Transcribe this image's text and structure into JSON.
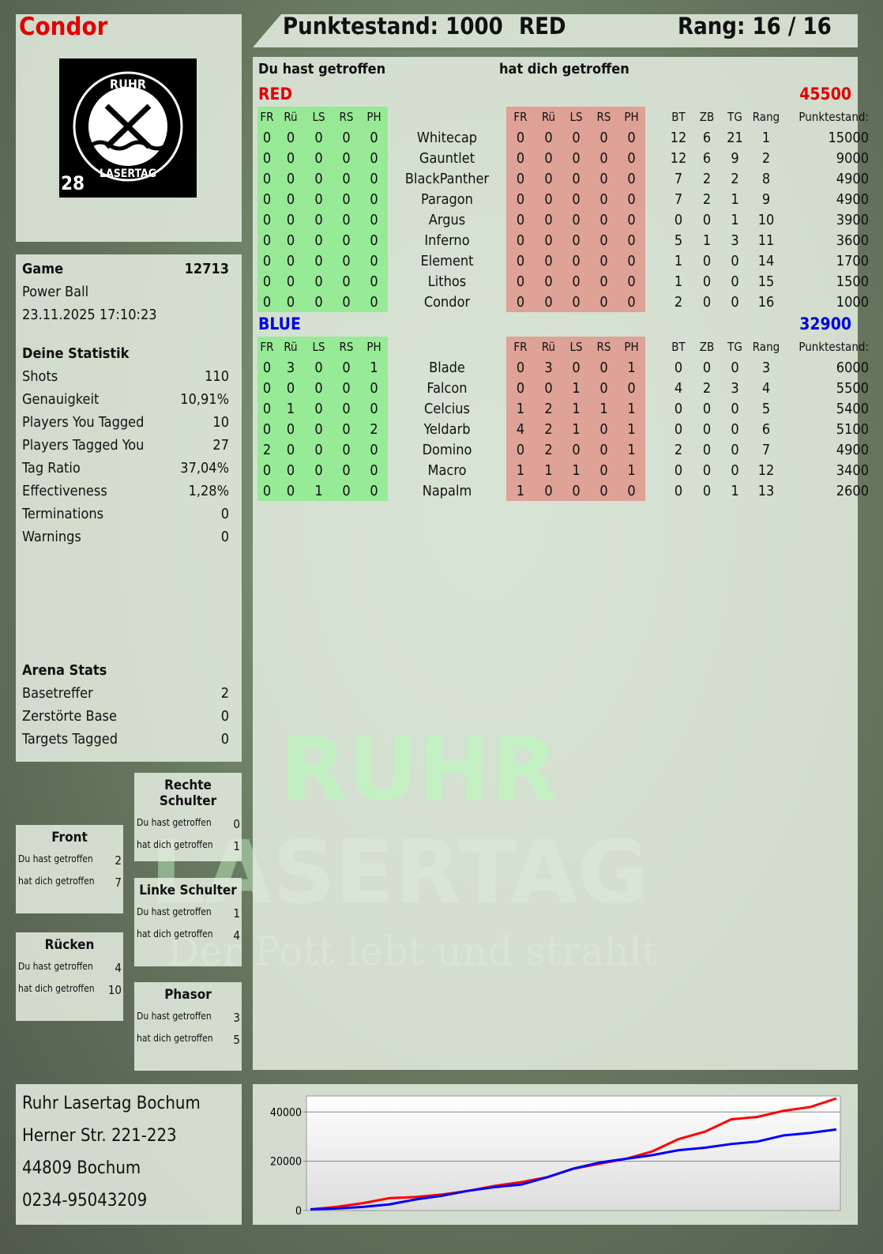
{
  "player": {
    "name": "Condor",
    "logo_text": "RUHR LASERTAG",
    "logo_number": "28"
  },
  "header": {
    "score": "Punktestand: 1000",
    "team": "RED",
    "rank": "Rang: 16 / 16"
  },
  "game": {
    "label": "Game",
    "id": "12713",
    "mode": "Power Ball",
    "datetime": "23.11.2025 17:10:23"
  },
  "stats": {
    "title": "Deine Statistik",
    "items": [
      [
        "Shots",
        "110"
      ],
      [
        "Genauigkeit",
        "10,91%"
      ],
      [
        "Players You Tagged",
        "10"
      ],
      [
        "Players Tagged You",
        "27"
      ],
      [
        "Tag Ratio",
        "37,04%"
      ],
      [
        "Effectiveness",
        "1,28%"
      ],
      [
        "Terminations",
        "0"
      ],
      [
        "Warnings",
        "0"
      ]
    ]
  },
  "arena": {
    "title": "Arena Stats",
    "items": [
      [
        "Basetreffer",
        "2"
      ],
      [
        "Zerstörte Base",
        "0"
      ],
      [
        "Targets Tagged",
        "0"
      ]
    ]
  },
  "zones": [
    {
      "title": "Rechte Schulter",
      "hit": "0",
      "got": "1"
    },
    {
      "title": "Front",
      "hit": "2",
      "got": "7"
    },
    {
      "title": "Linke Schulter",
      "hit": "1",
      "got": "4"
    },
    {
      "title": "Rücken",
      "hit": "4",
      "got": "10"
    },
    {
      "title": "Phasor",
      "hit": "3",
      "got": "5"
    }
  ],
  "zone_labels": {
    "hit": "Du hast getroffen",
    "got": "hat dich getroffen"
  },
  "main": {
    "you_hit": "Du hast getroffen",
    "hit_you": "hat dich getroffen",
    "cols_hit": [
      "FR",
      "Rü",
      "LS",
      "RS",
      "PH"
    ],
    "cols_stats": [
      "BT",
      "ZB",
      "TG",
      "Rang",
      "Punktestand:"
    ],
    "teams": [
      {
        "name": "RED",
        "total": "45500",
        "color": "#e00000",
        "players": [
          [
            "Whitecap",
            [
              0,
              0,
              0,
              0,
              0
            ],
            [
              0,
              0,
              0,
              0,
              0
            ],
            [
              12,
              6,
              21,
              1,
              15000
            ]
          ],
          [
            "Gauntlet",
            [
              0,
              0,
              0,
              0,
              0
            ],
            [
              0,
              0,
              0,
              0,
              0
            ],
            [
              12,
              6,
              9,
              2,
              9000
            ]
          ],
          [
            "BlackPanther",
            [
              0,
              0,
              0,
              0,
              0
            ],
            [
              0,
              0,
              0,
              0,
              0
            ],
            [
              7,
              2,
              2,
              8,
              4900
            ]
          ],
          [
            "Paragon",
            [
              0,
              0,
              0,
              0,
              0
            ],
            [
              0,
              0,
              0,
              0,
              0
            ],
            [
              7,
              2,
              1,
              9,
              4900
            ]
          ],
          [
            "Argus",
            [
              0,
              0,
              0,
              0,
              0
            ],
            [
              0,
              0,
              0,
              0,
              0
            ],
            [
              0,
              0,
              1,
              10,
              3900
            ]
          ],
          [
            "Inferno",
            [
              0,
              0,
              0,
              0,
              0
            ],
            [
              0,
              0,
              0,
              0,
              0
            ],
            [
              5,
              1,
              3,
              11,
              3600
            ]
          ],
          [
            "Element",
            [
              0,
              0,
              0,
              0,
              0
            ],
            [
              0,
              0,
              0,
              0,
              0
            ],
            [
              1,
              0,
              0,
              14,
              1700
            ]
          ],
          [
            "Lithos",
            [
              0,
              0,
              0,
              0,
              0
            ],
            [
              0,
              0,
              0,
              0,
              0
            ],
            [
              1,
              0,
              0,
              15,
              1500
            ]
          ],
          [
            "Condor",
            [
              0,
              0,
              0,
              0,
              0
            ],
            [
              0,
              0,
              0,
              0,
              0
            ],
            [
              2,
              0,
              0,
              16,
              1000
            ]
          ]
        ]
      },
      {
        "name": "BLUE",
        "total": "32900",
        "color": "#0000e0",
        "players": [
          [
            "Blade",
            [
              0,
              3,
              0,
              0,
              1
            ],
            [
              0,
              3,
              0,
              0,
              1
            ],
            [
              0,
              0,
              0,
              3,
              6000
            ]
          ],
          [
            "Falcon",
            [
              0,
              0,
              0,
              0,
              0
            ],
            [
              0,
              0,
              1,
              0,
              0
            ],
            [
              4,
              2,
              3,
              4,
              5500
            ]
          ],
          [
            "Celcius",
            [
              0,
              1,
              0,
              0,
              0
            ],
            [
              1,
              2,
              1,
              1,
              1
            ],
            [
              0,
              0,
              0,
              5,
              5400
            ]
          ],
          [
            "Yeldarb",
            [
              0,
              0,
              0,
              0,
              2
            ],
            [
              4,
              2,
              1,
              0,
              1
            ],
            [
              0,
              0,
              0,
              6,
              5100
            ]
          ],
          [
            "Domino",
            [
              2,
              0,
              0,
              0,
              0
            ],
            [
              0,
              2,
              0,
              0,
              1
            ],
            [
              2,
              0,
              0,
              7,
              4900
            ]
          ],
          [
            "Macro",
            [
              0,
              0,
              0,
              0,
              0
            ],
            [
              1,
              1,
              1,
              0,
              1
            ],
            [
              0,
              0,
              0,
              12,
              3400
            ]
          ],
          [
            "Napalm",
            [
              0,
              0,
              1,
              0,
              0
            ],
            [
              1,
              0,
              0,
              0,
              0
            ],
            [
              0,
              0,
              1,
              13,
              2600
            ]
          ]
        ]
      }
    ]
  },
  "address": [
    "Ruhr Lasertag Bochum",
    "Herner Str. 221-223",
    "44809 Bochum",
    "0234-95043209"
  ],
  "watermark": {
    "line1": "RUHR",
    "line2": "LASERTAG",
    "slogan": "Der Pott lebt und strahlt"
  },
  "chart_data": {
    "type": "line",
    "ylim": [
      0,
      46500
    ],
    "yticks": [
      0,
      20000,
      40000
    ],
    "grid": true,
    "series": [
      {
        "color": "#ff0000",
        "values": [
          500,
          1500,
          3000,
          5000,
          5500,
          6500,
          8000,
          10000,
          11500,
          13500,
          17000,
          19000,
          21000,
          24000,
          29000,
          32000,
          37000,
          38000,
          40500,
          42000,
          45500
        ]
      },
      {
        "color": "#0000ff",
        "values": [
          500,
          800,
          1500,
          2500,
          4500,
          6000,
          8000,
          9500,
          10500,
          13500,
          17000,
          19500,
          21000,
          22500,
          24500,
          25500,
          27000,
          28000,
          30500,
          31500,
          32900
        ]
      }
    ]
  }
}
